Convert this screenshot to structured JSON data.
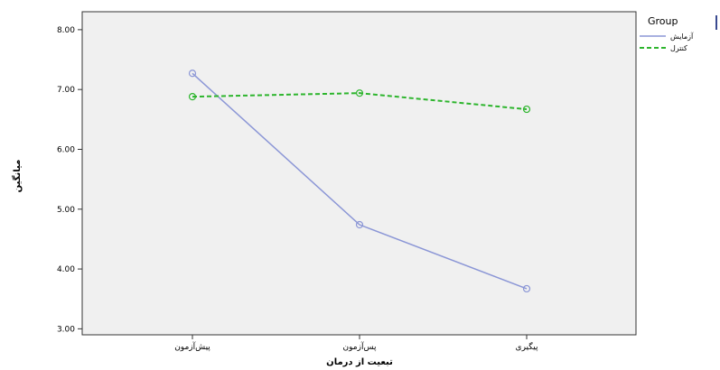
{
  "chart_data": {
    "type": "line",
    "categories": [
      "پیش‌آزمون",
      "پس‌آزمون",
      "پیگیری"
    ],
    "xlabel": "تبعیت از درمان",
    "ylabel": "میانگین",
    "ylim": [
      2.9,
      8.3
    ],
    "yticks": [
      "3.00",
      "4.00",
      "5.00",
      "6.00",
      "7.00",
      "8.00"
    ],
    "grid": false,
    "legend": {
      "title": "Group",
      "placement": "right"
    },
    "series": [
      {
        "name": "آزمایش",
        "values": [
          7.27,
          4.74,
          3.67
        ],
        "color": "#8b96d6",
        "dash": "solid"
      },
      {
        "name": "کنترل",
        "values": [
          6.88,
          6.94,
          6.67
        ],
        "color": "#2db52d",
        "dash": "dashed"
      }
    ],
    "colors": {
      "plot_background": "#f0f0f0",
      "page_background": "#ffffff"
    }
  }
}
